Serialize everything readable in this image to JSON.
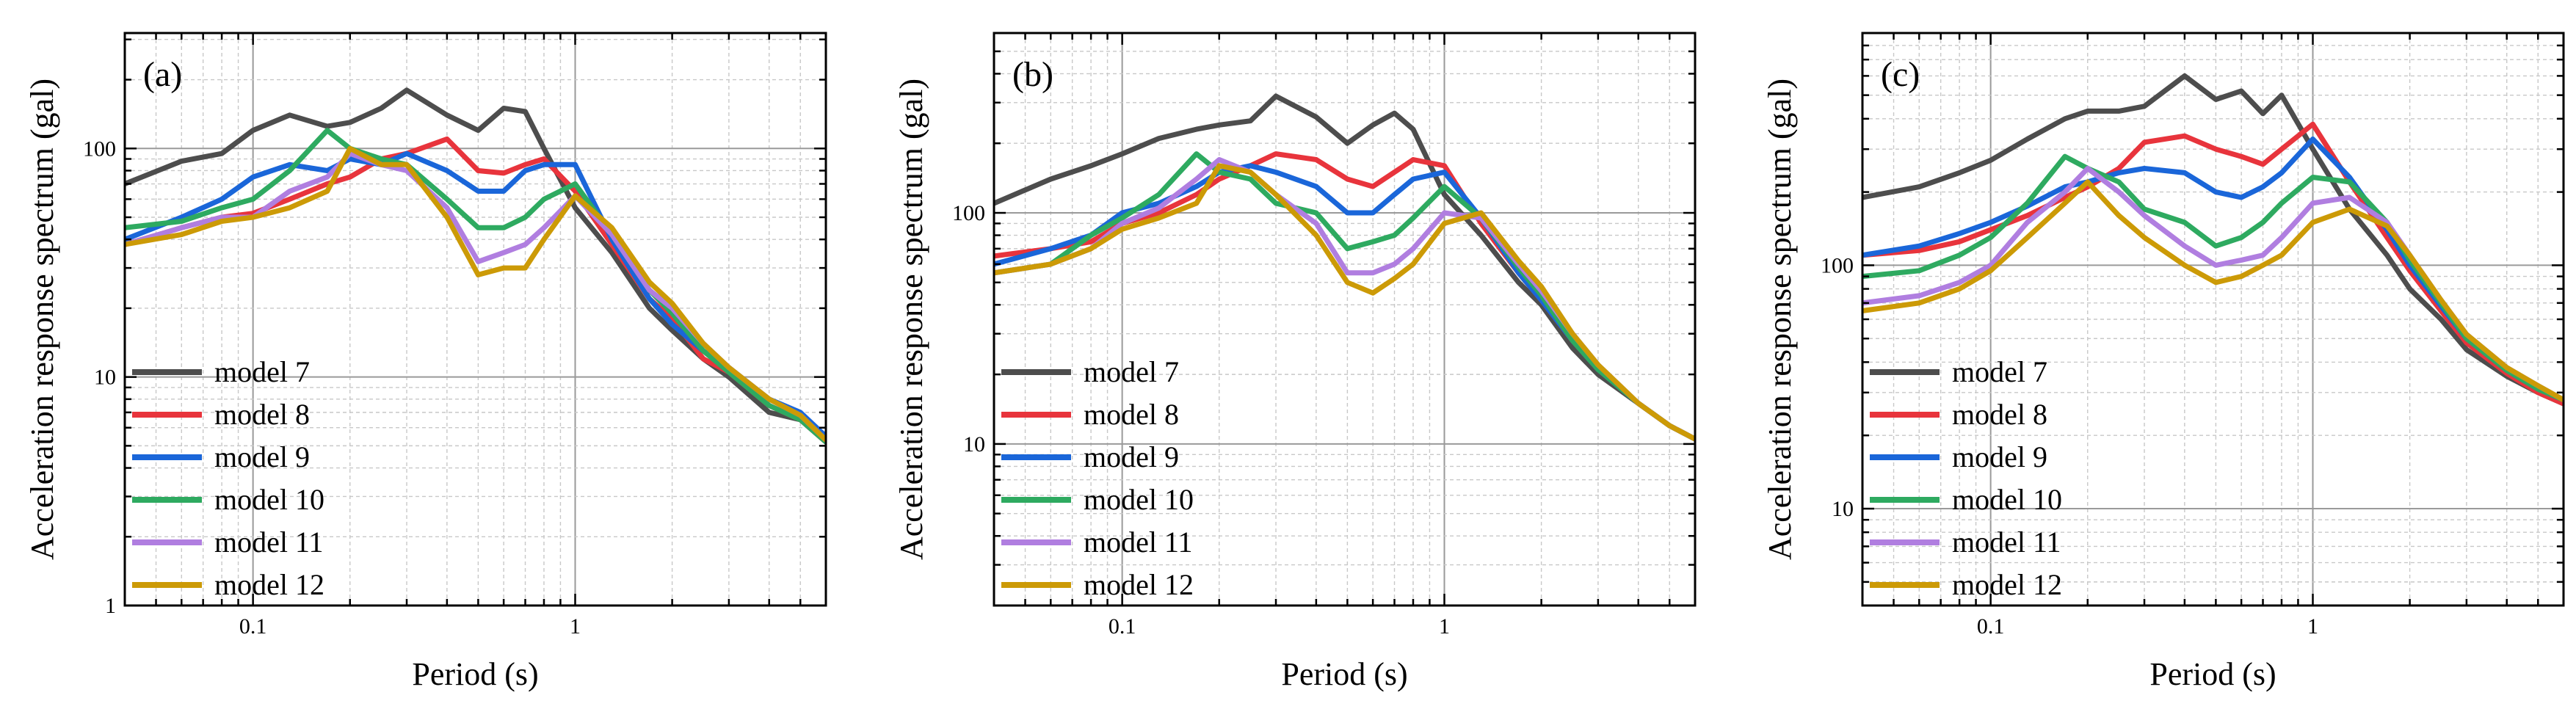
{
  "figure": {
    "xlabel": "Period (s)",
    "ylabel": "Acceleration response spectrum (gal)",
    "series_names": [
      "model 7",
      "model 8",
      "model 9",
      "model 10",
      "model 11",
      "model 12"
    ],
    "series_colors": [
      "#4d4d4d",
      "#e8343c",
      "#1a66d9",
      "#2eaa60",
      "#b07ee0",
      "#cc9a06"
    ],
    "xlim": [
      0.04,
      6
    ],
    "x_major_ticks": [
      0.1,
      1
    ],
    "x_tick_labels": [
      "0.1",
      "1"
    ]
  },
  "chart_data": [
    {
      "type": "line",
      "panel_label": "(a)",
      "xlabel": "Period (s)",
      "ylabel": "Acceleration response spectrum (gal)",
      "xscale": "log",
      "yscale": "log",
      "xlim": [
        0.04,
        6
      ],
      "ylim": [
        1,
        320
      ],
      "y_major_ticks": [
        1,
        10,
        100
      ],
      "y_tick_labels": [
        "1",
        "10",
        "100"
      ],
      "legend": "lower-left",
      "x": [
        0.04,
        0.06,
        0.08,
        0.1,
        0.13,
        0.17,
        0.2,
        0.25,
        0.3,
        0.4,
        0.5,
        0.6,
        0.7,
        0.8,
        1.0,
        1.3,
        1.7,
        2.0,
        2.5,
        3.0,
        4.0,
        5.0,
        6.0
      ],
      "series": [
        {
          "name": "model 7",
          "values": [
            70,
            88,
            95,
            120,
            140,
            125,
            130,
            150,
            180,
            140,
            120,
            150,
            145,
            100,
            55,
            35,
            20,
            16,
            12,
            10,
            7,
            6.5,
            5.2
          ]
        },
        {
          "name": "model 8",
          "values": [
            38,
            45,
            50,
            52,
            60,
            70,
            75,
            90,
            95,
            110,
            80,
            78,
            85,
            90,
            65,
            38,
            22,
            18,
            12,
            10.5,
            7.5,
            6.5,
            5.2
          ]
        },
        {
          "name": "model 9",
          "values": [
            40,
            50,
            60,
            75,
            85,
            80,
            90,
            85,
            95,
            80,
            65,
            65,
            80,
            85,
            85,
            40,
            22,
            17,
            13,
            11,
            8,
            7,
            5.5
          ]
        },
        {
          "name": "model 10",
          "values": [
            45,
            48,
            55,
            60,
            80,
            120,
            100,
            90,
            85,
            60,
            45,
            45,
            50,
            60,
            70,
            42,
            24,
            19,
            13,
            10.5,
            7.5,
            6.5,
            5.2
          ]
        },
        {
          "name": "model 11",
          "values": [
            38,
            45,
            50,
            50,
            65,
            75,
            95,
            85,
            80,
            55,
            32,
            35,
            38,
            45,
            62,
            42,
            24,
            20,
            14,
            11,
            8,
            6.8,
            5.3
          ]
        },
        {
          "name": "model 12",
          "values": [
            38,
            42,
            48,
            50,
            55,
            65,
            100,
            85,
            85,
            50,
            28,
            30,
            30,
            40,
            62,
            45,
            26,
            21,
            14,
            11,
            8,
            6.8,
            5.3
          ]
        }
      ]
    },
    {
      "type": "line",
      "panel_label": "(b)",
      "xlabel": "Period (s)",
      "ylabel": "Acceleration response spectrum (gal)",
      "xscale": "log",
      "yscale": "log",
      "xlim": [
        0.04,
        6
      ],
      "ylim": [
        2,
        600
      ],
      "y_major_ticks": [
        10,
        100
      ],
      "y_tick_labels": [
        "10",
        "100"
      ],
      "legend": "lower-left",
      "x": [
        0.04,
        0.06,
        0.08,
        0.1,
        0.13,
        0.17,
        0.2,
        0.25,
        0.3,
        0.4,
        0.5,
        0.6,
        0.7,
        0.8,
        1.0,
        1.3,
        1.7,
        2.0,
        2.5,
        3.0,
        4.0,
        5.0,
        6.0
      ],
      "series": [
        {
          "name": "model 7",
          "values": [
            110,
            140,
            160,
            180,
            210,
            230,
            240,
            250,
            320,
            260,
            200,
            240,
            270,
            230,
            120,
            80,
            50,
            40,
            26,
            20,
            15,
            12,
            10.5
          ]
        },
        {
          "name": "model 8",
          "values": [
            65,
            70,
            75,
            90,
            100,
            120,
            140,
            160,
            180,
            170,
            140,
            130,
            150,
            170,
            160,
            90,
            55,
            42,
            28,
            21,
            15,
            12,
            10.5
          ]
        },
        {
          "name": "model 9",
          "values": [
            60,
            70,
            80,
            100,
            110,
            130,
            150,
            160,
            150,
            130,
            100,
            100,
            120,
            140,
            150,
            95,
            55,
            42,
            28,
            21,
            15,
            12,
            10.5
          ]
        },
        {
          "name": "model 10",
          "values": [
            55,
            60,
            80,
            95,
            120,
            180,
            150,
            140,
            110,
            100,
            70,
            75,
            80,
            95,
            130,
            95,
            58,
            44,
            28,
            21,
            15,
            12,
            10.5
          ]
        },
        {
          "name": "model 11",
          "values": [
            55,
            60,
            70,
            90,
            105,
            140,
            170,
            150,
            120,
            90,
            55,
            55,
            60,
            70,
            100,
            95,
            60,
            46,
            30,
            22,
            15,
            12,
            10.5
          ]
        },
        {
          "name": "model 12",
          "values": [
            55,
            60,
            70,
            85,
            95,
            110,
            160,
            150,
            120,
            80,
            50,
            45,
            52,
            60,
            90,
            100,
            62,
            48,
            30,
            22,
            15,
            12,
            10.5
          ]
        }
      ]
    },
    {
      "type": "line",
      "panel_label": "(c)",
      "xlabel": "Period (s)",
      "ylabel": "Acceleration response spectrum (gal)",
      "xscale": "log",
      "yscale": "log",
      "xlim": [
        0.04,
        6
      ],
      "ylim": [
        4,
        900
      ],
      "y_major_ticks": [
        10,
        100
      ],
      "y_tick_labels": [
        "10",
        "100"
      ],
      "legend": "lower-left",
      "x": [
        0.04,
        0.06,
        0.08,
        0.1,
        0.13,
        0.17,
        0.2,
        0.25,
        0.3,
        0.4,
        0.5,
        0.6,
        0.7,
        0.8,
        1.0,
        1.3,
        1.7,
        2.0,
        2.5,
        3.0,
        4.0,
        5.0,
        6.0
      ],
      "series": [
        {
          "name": "model 7",
          "values": [
            190,
            210,
            240,
            270,
            330,
            400,
            430,
            430,
            450,
            600,
            480,
            520,
            420,
            500,
            300,
            170,
            110,
            80,
            60,
            45,
            35,
            30,
            27
          ]
        },
        {
          "name": "model 8",
          "values": [
            110,
            115,
            125,
            140,
            160,
            190,
            210,
            250,
            320,
            340,
            300,
            280,
            260,
            300,
            380,
            220,
            130,
            95,
            65,
            48,
            36,
            30,
            27
          ]
        },
        {
          "name": "model 9",
          "values": [
            110,
            120,
            135,
            150,
            175,
            210,
            220,
            240,
            250,
            240,
            200,
            190,
            210,
            240,
            330,
            230,
            140,
            100,
            68,
            50,
            37,
            31,
            28
          ]
        },
        {
          "name": "model 10",
          "values": [
            90,
            95,
            110,
            130,
            180,
            280,
            250,
            220,
            170,
            150,
            120,
            130,
            150,
            180,
            230,
            220,
            150,
            105,
            70,
            50,
            37,
            31,
            28
          ]
        },
        {
          "name": "model 11",
          "values": [
            70,
            75,
            85,
            100,
            150,
            200,
            250,
            200,
            160,
            120,
            100,
            105,
            110,
            130,
            180,
            190,
            150,
            110,
            72,
            52,
            38,
            32,
            28
          ]
        },
        {
          "name": "model 12",
          "values": [
            65,
            70,
            80,
            95,
            130,
            180,
            220,
            160,
            130,
            100,
            85,
            90,
            100,
            110,
            150,
            170,
            145,
            110,
            72,
            52,
            38,
            32,
            28
          ]
        }
      ]
    }
  ]
}
